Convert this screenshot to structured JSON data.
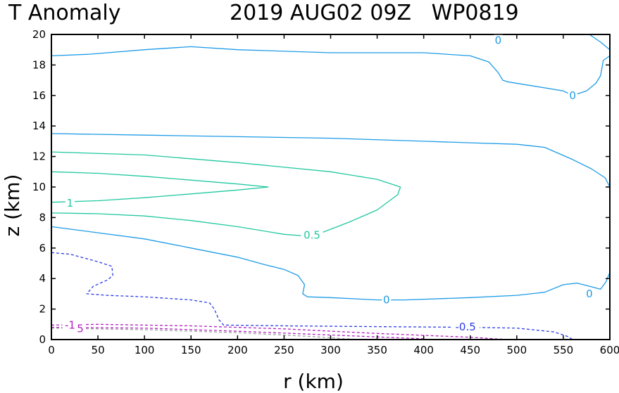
{
  "chart_data": {
    "type": "contour",
    "title_left": "T Anomaly",
    "title_right": "2019 AUG02 09Z   WP0819",
    "xlabel": "r (km)",
    "ylabel": "z (km)",
    "xlim": [
      0,
      600
    ],
    "ylim": [
      0,
      20
    ],
    "xticks": [
      "0",
      "50",
      "100",
      "150",
      "200",
      "250",
      "300",
      "350",
      "400",
      "450",
      "500",
      "550",
      "600"
    ],
    "yticks": [
      "0",
      "2",
      "4",
      "6",
      "8",
      "10",
      "12",
      "14",
      "16",
      "18",
      "20"
    ],
    "colors": {
      "zero": "#1E9BE6",
      "positive": "#22C8A0",
      "neg_half": "#2B3BE6",
      "neg_one": "#B020C0",
      "neg_small": "#A0A0A0"
    },
    "contours": [
      {
        "level": "0",
        "style": "zero",
        "dashed": false,
        "points": [
          [
            0,
            18.6
          ],
          [
            40,
            18.7
          ],
          [
            100,
            19.0
          ],
          [
            150,
            19.2
          ],
          [
            200,
            19.0
          ],
          [
            300,
            18.8
          ],
          [
            400,
            18.8
          ],
          [
            450,
            18.6
          ],
          [
            470,
            18.2
          ],
          [
            480,
            17.5
          ],
          [
            485,
            17.0
          ],
          [
            490,
            16.9
          ],
          [
            520,
            16.6
          ],
          [
            550,
            16.3
          ],
          [
            560,
            16.0
          ]
        ]
      },
      {
        "level": "0",
        "style": "zero",
        "dashed": false,
        "points": [
          [
            578,
            20.0
          ],
          [
            590,
            19.5
          ],
          [
            600,
            19.0
          ]
        ]
      },
      {
        "level": "0",
        "style": "zero",
        "dashed": false,
        "points": [
          [
            600,
            18.6
          ],
          [
            593,
            18.3
          ],
          [
            590,
            17.3
          ],
          [
            585,
            16.8
          ],
          [
            575,
            16.3
          ],
          [
            560,
            16.0
          ]
        ]
      },
      {
        "level": "0",
        "style": "zero",
        "dashed": false,
        "points": [
          [
            480,
            20.0
          ],
          [
            481,
            19.7
          ]
        ]
      },
      {
        "level": "0",
        "style": "zero",
        "dashed": false,
        "points": [
          [
            0,
            13.5
          ],
          [
            100,
            13.4
          ],
          [
            200,
            13.3
          ],
          [
            300,
            13.2
          ],
          [
            400,
            13.0
          ],
          [
            450,
            12.9
          ],
          [
            500,
            12.8
          ],
          [
            530,
            12.6
          ],
          [
            560,
            11.8
          ],
          [
            580,
            11.2
          ],
          [
            595,
            10.6
          ],
          [
            600,
            10.0
          ]
        ]
      },
      {
        "level": "0",
        "style": "zero",
        "dashed": false,
        "points": [
          [
            0,
            7.4
          ],
          [
            50,
            7.0
          ],
          [
            100,
            6.6
          ],
          [
            150,
            6.0
          ],
          [
            200,
            5.4
          ],
          [
            230,
            4.9
          ],
          [
            250,
            4.6
          ],
          [
            265,
            4.2
          ],
          [
            272,
            3.6
          ],
          [
            270,
            3.0
          ],
          [
            275,
            2.8
          ],
          [
            300,
            2.75
          ],
          [
            350,
            2.6
          ],
          [
            380,
            2.6
          ],
          [
            450,
            2.75
          ],
          [
            500,
            2.9
          ],
          [
            530,
            3.1
          ],
          [
            550,
            3.6
          ],
          [
            565,
            3.7
          ],
          [
            578,
            3.5
          ],
          [
            590,
            3.3
          ],
          [
            596,
            3.8
          ],
          [
            600,
            4.4
          ]
        ]
      },
      {
        "level": "0.5",
        "style": "positive",
        "dashed": false,
        "points": [
          [
            0,
            12.3
          ],
          [
            100,
            12.1
          ],
          [
            200,
            11.6
          ],
          [
            300,
            11.0
          ],
          [
            350,
            10.5
          ],
          [
            375,
            10.0
          ],
          [
            372,
            9.5
          ],
          [
            350,
            8.5
          ],
          [
            320,
            7.7
          ],
          [
            290,
            7.0
          ],
          [
            270,
            6.8
          ],
          [
            250,
            6.9
          ],
          [
            200,
            7.4
          ],
          [
            150,
            7.8
          ],
          [
            100,
            8.1
          ],
          [
            50,
            8.25
          ],
          [
            0,
            8.3
          ]
        ]
      },
      {
        "level": "1",
        "style": "positive",
        "dashed": false,
        "points": [
          [
            0,
            11.0
          ],
          [
            50,
            10.9
          ],
          [
            100,
            10.7
          ],
          [
            160,
            10.4
          ],
          [
            200,
            10.2
          ],
          [
            233,
            10.0
          ],
          [
            200,
            9.8
          ],
          [
            150,
            9.55
          ],
          [
            100,
            9.3
          ],
          [
            50,
            9.1
          ],
          [
            0,
            9.0
          ]
        ]
      },
      {
        "level": "-0.5",
        "style": "neg_half",
        "dashed": true,
        "points": [
          [
            0,
            5.7
          ],
          [
            20,
            5.6
          ],
          [
            50,
            5.1
          ],
          [
            65,
            4.8
          ],
          [
            66,
            4.2
          ],
          [
            60,
            3.9
          ],
          [
            45,
            3.5
          ],
          [
            38,
            3.0
          ],
          [
            60,
            2.9
          ],
          [
            100,
            2.8
          ],
          [
            150,
            2.6
          ],
          [
            170,
            2.4
          ],
          [
            175,
            2.0
          ],
          [
            180,
            1.3
          ],
          [
            185,
            0.95
          ],
          [
            250,
            0.9
          ],
          [
            350,
            0.85
          ],
          [
            450,
            0.8
          ],
          [
            500,
            0.75
          ],
          [
            540,
            0.5
          ],
          [
            555,
            0.2
          ],
          [
            560,
            0.0
          ]
        ]
      },
      {
        "level": "-1",
        "style": "neg_one",
        "dashed": true,
        "points": [
          [
            0,
            0.95
          ],
          [
            50,
            1.0
          ],
          [
            150,
            0.9
          ],
          [
            250,
            0.7
          ],
          [
            350,
            0.4
          ],
          [
            450,
            0.15
          ],
          [
            490,
            0.0
          ]
        ]
      },
      {
        "level": "-1",
        "style": "neg_one",
        "dashed": true,
        "points": [
          [
            0,
            0.8
          ],
          [
            100,
            0.75
          ],
          [
            200,
            0.55
          ],
          [
            300,
            0.3
          ],
          [
            400,
            0.05
          ],
          [
            405,
            0.0
          ]
        ]
      },
      {
        "level": "-1.5",
        "style": "neg_small",
        "dashed": true,
        "points": [
          [
            0,
            0.75
          ],
          [
            100,
            0.65
          ],
          [
            200,
            0.45
          ],
          [
            280,
            0.2
          ],
          [
            330,
            0.0
          ]
        ]
      }
    ],
    "contour_labels": [
      {
        "text": "0",
        "x": 480,
        "y": 19.6,
        "style": "zero"
      },
      {
        "text": "0",
        "x": 560,
        "y": 16.0,
        "style": "zero"
      },
      {
        "text": "0",
        "x": 360,
        "y": 2.6,
        "style": "zero"
      },
      {
        "text": "0",
        "x": 578,
        "y": 3.0,
        "style": "zero"
      },
      {
        "text": "0.5",
        "x": 280,
        "y": 6.85,
        "style": "positive"
      },
      {
        "text": "1",
        "x": 20,
        "y": 8.95,
        "style": "positive"
      },
      {
        "text": "-0.5",
        "x": 445,
        "y": 0.82,
        "style": "neg_half"
      },
      {
        "text": "-1",
        "x": 20,
        "y": 0.95,
        "style": "neg_one"
      },
      {
        "text": "5",
        "x": 31,
        "y": 0.72,
        "style": "neg_one"
      }
    ]
  }
}
